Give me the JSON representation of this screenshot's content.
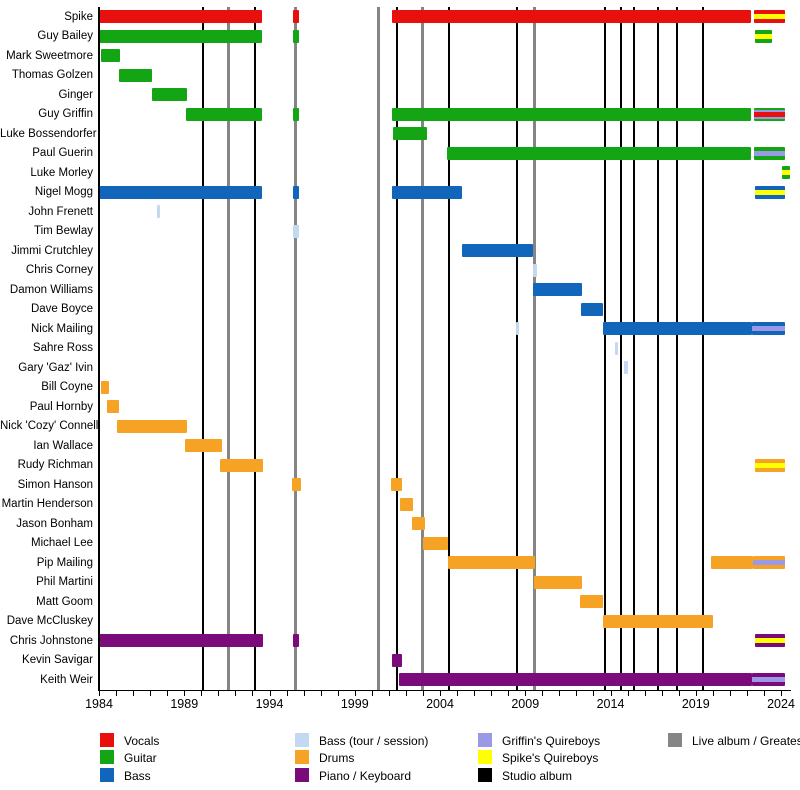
{
  "chart_data": {
    "type": "bar",
    "subtype": "membership-timeline-gantt",
    "title": "",
    "x_axis": {
      "start": 1984,
      "end": 2024,
      "tick_label_years": [
        1984,
        1989,
        1994,
        1999,
        2004,
        2009,
        2014,
        2019,
        2024
      ],
      "minor_tick_interval": 1,
      "label_interval": 5
    },
    "colors": {
      "vocals": "#e8100c",
      "guitar": "#13a513",
      "bass": "#1166bb",
      "bass_session": "#c5d8f1",
      "drums": "#f6a325",
      "piano": "#7b0a7b",
      "griffins_quireboys": "#9999e6",
      "spikes_quireboys": "#ffff00",
      "studio_album": "#000000",
      "live_album": "#858585"
    },
    "members": [
      {
        "name": "Spike",
        "segments": [
          {
            "start": 1984.0,
            "end": 1993.55,
            "role": "vocals"
          },
          {
            "start": 1995.35,
            "end": 1995.75,
            "role": "vocals"
          },
          {
            "start": 2001.2,
            "end": 2022.25,
            "role": "vocals"
          },
          {
            "start": 2022.4,
            "end": 2024.25,
            "role": "vocals",
            "stripes": [
              "spikes_quireboys"
            ]
          }
        ]
      },
      {
        "name": "Guy Bailey",
        "segments": [
          {
            "start": 1984.0,
            "end": 1993.55,
            "role": "guitar"
          },
          {
            "start": 1995.35,
            "end": 1995.75,
            "role": "guitar"
          },
          {
            "start": 2022.45,
            "end": 2023.5,
            "role": "guitar",
            "stripes": [
              "spikes_quireboys"
            ]
          }
        ]
      },
      {
        "name": "Mark Sweetmore",
        "segments": [
          {
            "start": 1984.1,
            "end": 1985.25,
            "role": "guitar"
          }
        ]
      },
      {
        "name": "Thomas Golzen",
        "segments": [
          {
            "start": 1985.2,
            "end": 1987.1,
            "role": "guitar"
          }
        ]
      },
      {
        "name": "Ginger",
        "segments": [
          {
            "start": 1987.1,
            "end": 1989.15,
            "role": "guitar"
          }
        ]
      },
      {
        "name": "Guy Griffin",
        "segments": [
          {
            "start": 1989.1,
            "end": 1993.55,
            "role": "guitar"
          },
          {
            "start": 1995.35,
            "end": 1995.75,
            "role": "guitar"
          },
          {
            "start": 2001.2,
            "end": 2022.25,
            "role": "guitar"
          },
          {
            "start": 2022.4,
            "end": 2024.25,
            "role": "guitar",
            "stripes": [
              "griffins_quireboys",
              "vocals"
            ]
          }
        ]
      },
      {
        "name": "Luke Bossendorfer",
        "segments": [
          {
            "start": 2001.25,
            "end": 2003.25,
            "role": "guitar"
          }
        ]
      },
      {
        "name": "Paul Guerin",
        "segments": [
          {
            "start": 2004.4,
            "end": 2022.25,
            "role": "guitar"
          },
          {
            "start": 2022.4,
            "end": 2024.25,
            "role": "guitar",
            "stripes": [
              "griffins_quireboys"
            ]
          }
        ]
      },
      {
        "name": "Luke Morley",
        "segments": [
          {
            "start": 2024.05,
            "end": 2024.55,
            "role": "guitar",
            "stripes": [
              "spikes_quireboys"
            ]
          }
        ]
      },
      {
        "name": "Nigel Mogg",
        "segments": [
          {
            "start": 1984.0,
            "end": 1993.55,
            "role": "bass"
          },
          {
            "start": 1995.35,
            "end": 1995.75,
            "role": "bass"
          },
          {
            "start": 2001.2,
            "end": 2005.3,
            "role": "bass"
          },
          {
            "start": 2022.45,
            "end": 2024.25,
            "role": "bass",
            "stripes": [
              "spikes_quireboys"
            ]
          }
        ]
      },
      {
        "name": "John Frenett",
        "segments": [
          {
            "start": 1987.4,
            "end": 1987.6,
            "role": "bass_session"
          }
        ]
      },
      {
        "name": "Tim Bewlay",
        "segments": [
          {
            "start": 1995.35,
            "end": 1995.75,
            "role": "bass_session"
          }
        ]
      },
      {
        "name": "Jimmi Crutchley",
        "segments": [
          {
            "start": 2005.3,
            "end": 2009.45,
            "role": "bass"
          }
        ]
      },
      {
        "name": "Chris Corney",
        "segments": [
          {
            "start": 2009.45,
            "end": 2009.7,
            "role": "bass_session"
          }
        ]
      },
      {
        "name": "Damon Williams",
        "segments": [
          {
            "start": 2009.45,
            "end": 2012.3,
            "role": "bass"
          }
        ]
      },
      {
        "name": "Dave Boyce",
        "segments": [
          {
            "start": 2012.25,
            "end": 2013.55,
            "role": "bass"
          }
        ]
      },
      {
        "name": "Nick Mailing",
        "segments": [
          {
            "start": 2008.45,
            "end": 2008.65,
            "role": "bass_session"
          },
          {
            "start": 2013.55,
            "end": 2022.3,
            "role": "bass"
          },
          {
            "start": 2022.3,
            "end": 2024.25,
            "role": "bass",
            "stripes": [
              "griffins_quireboys"
            ]
          }
        ]
      },
      {
        "name": "Sahre Ross",
        "segments": [
          {
            "start": 2014.25,
            "end": 2014.45,
            "role": "bass_session"
          }
        ]
      },
      {
        "name": "Gary 'Gaz' Ivin",
        "segments": [
          {
            "start": 2014.8,
            "end": 2015.0,
            "role": "bass_session"
          }
        ]
      },
      {
        "name": "Bill Coyne",
        "segments": [
          {
            "start": 1984.1,
            "end": 1984.6,
            "role": "drums"
          }
        ]
      },
      {
        "name": "Paul Hornby",
        "segments": [
          {
            "start": 1984.45,
            "end": 1985.2,
            "role": "drums"
          }
        ]
      },
      {
        "name": "Nick 'Cozy' Connell",
        "segments": [
          {
            "start": 1985.05,
            "end": 1989.15,
            "role": "drums"
          }
        ]
      },
      {
        "name": "Ian Wallace",
        "segments": [
          {
            "start": 1989.05,
            "end": 1991.2,
            "role": "drums"
          }
        ]
      },
      {
        "name": "Rudy Richman",
        "segments": [
          {
            "start": 1991.1,
            "end": 1993.6,
            "role": "drums"
          },
          {
            "start": 2022.45,
            "end": 2024.25,
            "role": "drums",
            "stripes": [
              "spikes_quireboys"
            ]
          }
        ]
      },
      {
        "name": "Simon Hanson",
        "segments": [
          {
            "start": 1995.3,
            "end": 1995.85,
            "role": "drums"
          },
          {
            "start": 2001.15,
            "end": 2001.8,
            "role": "drums"
          }
        ]
      },
      {
        "name": "Martin Henderson",
        "segments": [
          {
            "start": 2001.65,
            "end": 2002.4,
            "role": "drums"
          }
        ]
      },
      {
        "name": "Jason Bonham",
        "segments": [
          {
            "start": 2002.35,
            "end": 2003.1,
            "role": "drums"
          }
        ]
      },
      {
        "name": "Michael Lee",
        "segments": [
          {
            "start": 2003.0,
            "end": 2004.45,
            "role": "drums"
          }
        ]
      },
      {
        "name": "Pip Mailing",
        "segments": [
          {
            "start": 2004.45,
            "end": 2009.6,
            "role": "drums"
          },
          {
            "start": 2019.9,
            "end": 2022.35,
            "role": "drums"
          },
          {
            "start": 2022.35,
            "end": 2024.25,
            "role": "drums",
            "stripes": [
              "griffins_quireboys"
            ]
          }
        ]
      },
      {
        "name": "Phil Martini",
        "segments": [
          {
            "start": 2009.5,
            "end": 2012.3,
            "role": "drums"
          }
        ]
      },
      {
        "name": "Matt Goom",
        "segments": [
          {
            "start": 2012.2,
            "end": 2013.55,
            "role": "drums"
          }
        ]
      },
      {
        "name": "Dave McCluskey",
        "segments": [
          {
            "start": 2013.55,
            "end": 2020.0,
            "role": "drums"
          }
        ]
      },
      {
        "name": "Chris Johnstone",
        "segments": [
          {
            "start": 1984.0,
            "end": 1993.6,
            "role": "piano"
          },
          {
            "start": 1995.35,
            "end": 1995.75,
            "role": "piano"
          },
          {
            "start": 2022.45,
            "end": 2024.25,
            "role": "piano",
            "stripes": [
              "spikes_quireboys"
            ]
          }
        ]
      },
      {
        "name": "Kevin Savigar",
        "segments": [
          {
            "start": 2001.2,
            "end": 2001.8,
            "role": "piano"
          }
        ]
      },
      {
        "name": "Keith Weir",
        "segments": [
          {
            "start": 2001.6,
            "end": 2022.3,
            "role": "piano"
          },
          {
            "start": 2022.3,
            "end": 2024.25,
            "role": "piano",
            "stripes": [
              "griffins_quireboys"
            ]
          }
        ]
      }
    ],
    "album_lines": {
      "studio_years": [
        1990.1,
        1993.15,
        2001.5,
        2004.5,
        2008.5,
        2013.7,
        2014.6,
        2015.4,
        2016.8,
        2017.9,
        2019.4
      ],
      "live_years": [
        1991.6,
        1995.55,
        2000.4,
        2003.0,
        2009.55
      ]
    }
  },
  "legend": {
    "columns": [
      {
        "items": [
          {
            "label": "Vocals",
            "color_key": "vocals"
          },
          {
            "label": "Guitar",
            "color_key": "guitar"
          },
          {
            "label": "Bass",
            "color_key": "bass"
          }
        ]
      },
      {
        "items": [
          {
            "label": "Bass (tour / session)",
            "color_key": "bass_session"
          },
          {
            "label": "Drums",
            "color_key": "drums"
          },
          {
            "label": "Piano / Keyboard",
            "color_key": "piano"
          }
        ]
      },
      {
        "items": [
          {
            "label": "Griffin's Quireboys",
            "color_key": "griffins_quireboys"
          },
          {
            "label": "Spike's Quireboys",
            "color_key": "spikes_quireboys"
          },
          {
            "label": "Studio album",
            "color_key": "studio_album"
          }
        ]
      },
      {
        "items": [
          {
            "label": "Live album / Greatest H",
            "color_key": "live_album"
          }
        ]
      }
    ]
  }
}
